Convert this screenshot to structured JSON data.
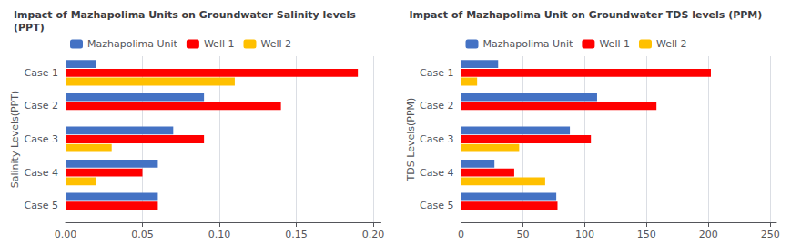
{
  "chart_data": [
    {
      "type": "bar",
      "orientation": "horizontal",
      "title": "Impact of Mazhapolima Units on Groundwater Salinity levels\n(PPT)",
      "ylabel": "Salinity Levels(PPT)",
      "categories": [
        "Case 1",
        "Case 2",
        "Case 3",
        "Case 4",
        "Case 5"
      ],
      "series": [
        {
          "name": "Mazhapolima Unit",
          "color": "#4472C4",
          "values": [
            0.02,
            0.09,
            0.07,
            0.06,
            0.06
          ]
        },
        {
          "name": "Well 1",
          "color": "#FF0000",
          "values": [
            0.19,
            0.14,
            0.09,
            0.05,
            0.06
          ]
        },
        {
          "name": "Well 2",
          "color": "#FFC000",
          "values": [
            0.11,
            null,
            0.03,
            0.02,
            null
          ]
        }
      ],
      "xlim": [
        0,
        0.205
      ],
      "xticks": [
        {
          "value": 0,
          "label": "0.00"
        },
        {
          "value": 0.05,
          "label": "0.05"
        },
        {
          "value": 0.1,
          "label": "0.10"
        },
        {
          "value": 0.15,
          "label": "0.15"
        },
        {
          "value": 0.2,
          "label": "0.20"
        }
      ],
      "grid": true,
      "legend": "top"
    },
    {
      "type": "bar",
      "orientation": "horizontal",
      "title": "Impact of Mazhapolima Unit on Groundwater TDS levels (PPM)",
      "ylabel": "TDS Levels(PPM)",
      "categories": [
        "Case 1",
        "Case 2",
        "Case 3",
        "Case 4",
        "Case 5"
      ],
      "series": [
        {
          "name": "Mazhapolima Unit",
          "color": "#4472C4",
          "values": [
            30,
            110,
            88,
            27,
            77
          ]
        },
        {
          "name": "Well 1",
          "color": "#FF0000",
          "values": [
            202,
            158,
            105,
            43,
            78
          ]
        },
        {
          "name": "Well 2",
          "color": "#FFC000",
          "values": [
            13,
            null,
            47,
            68,
            null
          ]
        }
      ],
      "xlim": [
        0,
        255
      ],
      "xticks": [
        0,
        50,
        100,
        150,
        200,
        250
      ],
      "grid": true,
      "legend": "top"
    }
  ]
}
